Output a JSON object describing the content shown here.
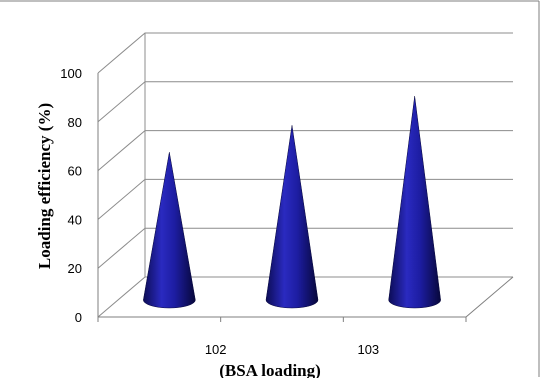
{
  "chart_data": {
    "type": "bar",
    "shape": "cone-3d",
    "categories": [
      "102",
      "",
      "103"
    ],
    "values": [
      61,
      72,
      84
    ],
    "ylabel": "Loading efficiency (%)",
    "xlabel": "(BSA loading)",
    "ylim": [
      0,
      100
    ],
    "yticks": [
      "0",
      "20",
      "40",
      "60",
      "80",
      "100"
    ],
    "grid": true,
    "legend": "none",
    "colors": {
      "cone_dark": "#0a0a46",
      "cone_mid": "#1c1ca8",
      "cone_light": "#3838d0",
      "grid": "#8c8c8c",
      "frame": "#7f7f7f"
    }
  }
}
